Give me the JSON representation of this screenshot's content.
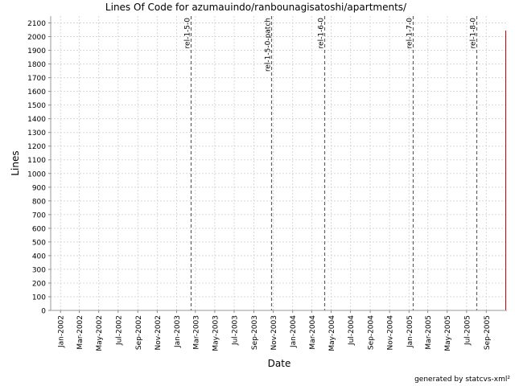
{
  "chart_data": {
    "type": "line",
    "title": "Lines Of Code for azumauindo/ranbounagisatoshi/apartments/",
    "xlabel": "Date",
    "ylabel": "Lines",
    "ylim": [
      0,
      2150
    ],
    "y_ticks": [
      0,
      100,
      200,
      300,
      400,
      500,
      600,
      700,
      800,
      900,
      1000,
      1100,
      1200,
      1300,
      1400,
      1500,
      1600,
      1700,
      1800,
      1900,
      2000,
      2100
    ],
    "x_ticks": [
      "Jan-2002",
      "Mar-2002",
      "May-2002",
      "Jul-2002",
      "Sep-2002",
      "Nov-2002",
      "Jan-2003",
      "Mar-2003",
      "May-2003",
      "Jul-2003",
      "Sep-2003",
      "Nov-2003",
      "Jan-2004",
      "Mar-2004",
      "May-2004",
      "Jul-2004",
      "Sep-2004",
      "Nov-2004",
      "Jan-2005",
      "Mar-2005",
      "May-2005",
      "Jul-2005",
      "Sep-2005"
    ],
    "x_range": [
      "2001-12-01",
      "2005-11-05"
    ],
    "grid": true,
    "legend": "none",
    "series": [
      {
        "color": "#cc0000",
        "points": [
          {
            "date": "2001-12-25",
            "value": 0
          },
          {
            "date": "2005-10-31",
            "value": 0
          },
          {
            "date": "2005-10-31",
            "value": 2045
          }
        ]
      }
    ],
    "markers": [
      {
        "label": "rel-1-5-0",
        "date": "2003-02-15"
      },
      {
        "label": "rel-1-5-0-patch",
        "date": "2003-10-26"
      },
      {
        "label": "rel-1-6-0",
        "date": "2004-04-10"
      },
      {
        "label": "rel-1-7-0",
        "date": "2005-01-13"
      },
      {
        "label": "rel-1-8-0",
        "date": "2005-08-01"
      }
    ]
  },
  "footer": "generated by statcvs-xml²"
}
